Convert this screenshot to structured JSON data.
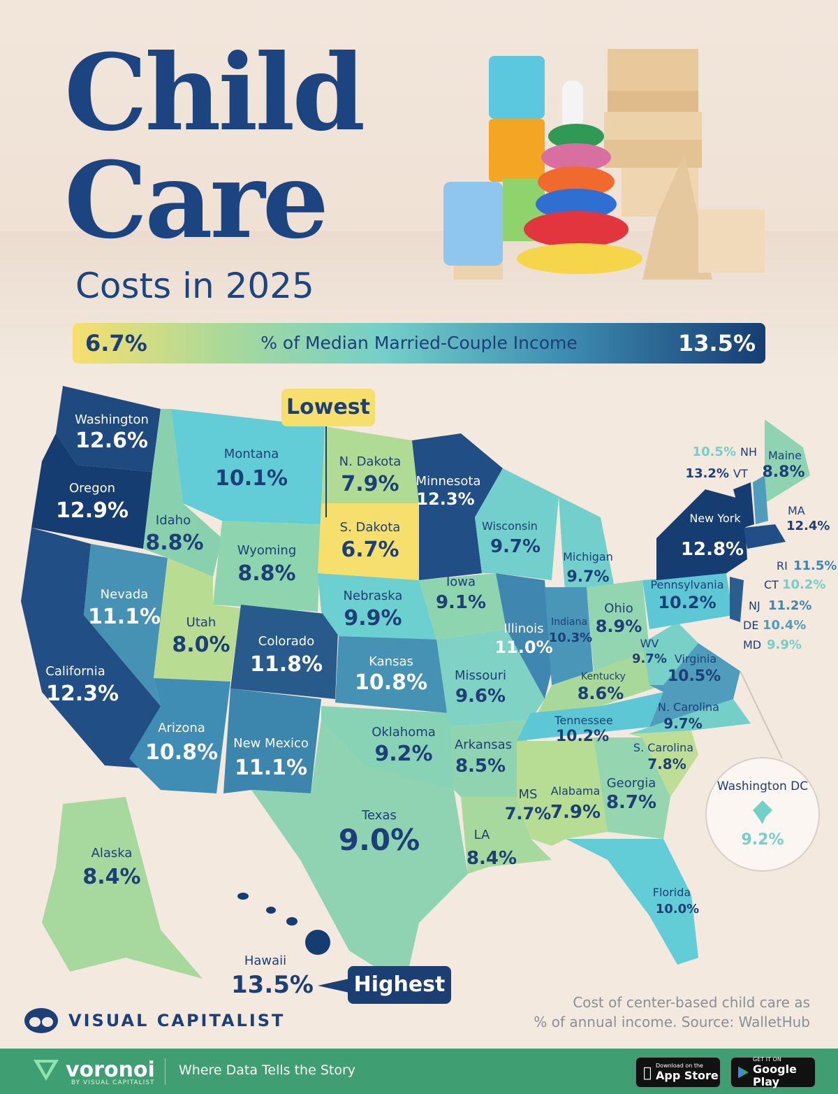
{
  "title": {
    "line1": "Child",
    "line2": "Care",
    "subtitle": "Costs in 2025"
  },
  "legend": {
    "min": "6.7%",
    "max": "13.5%",
    "title": "% of Median Married-Couple Income",
    "gradient_colors": [
      "#f7df6e",
      "#a9d99a",
      "#74cfc8",
      "#3f8fb3",
      "#163d72"
    ]
  },
  "callouts": {
    "lowest": "Lowest",
    "highest": "Highest"
  },
  "states": {
    "washington": {
      "name": "Washington",
      "value": "12.6%"
    },
    "oregon": {
      "name": "Oregon",
      "value": "12.9%"
    },
    "california": {
      "name": "California",
      "value": "12.3%"
    },
    "nevada": {
      "name": "Nevada",
      "value": "11.1%"
    },
    "idaho": {
      "name": "Idaho",
      "value": "8.8%"
    },
    "montana": {
      "name": "Montana",
      "value": "10.1%"
    },
    "wyoming": {
      "name": "Wyoming",
      "value": "8.8%"
    },
    "utah": {
      "name": "Utah",
      "value": "8.0%"
    },
    "arizona": {
      "name": "Arizona",
      "value": "10.8%"
    },
    "colorado": {
      "name": "Colorado",
      "value": "11.8%"
    },
    "new_mexico": {
      "name": "New Mexico",
      "value": "11.1%"
    },
    "north_dakota": {
      "name": "N. Dakota",
      "value": "7.9%"
    },
    "south_dakota": {
      "name": "S. Dakota",
      "value": "6.7%"
    },
    "nebraska": {
      "name": "Nebraska",
      "value": "9.9%"
    },
    "kansas": {
      "name": "Kansas",
      "value": "10.8%"
    },
    "oklahoma": {
      "name": "Oklahoma",
      "value": "9.2%"
    },
    "texas": {
      "name": "Texas",
      "value": "9.0%"
    },
    "minnesota": {
      "name": "Minnesota",
      "value": "12.3%"
    },
    "iowa": {
      "name": "Iowa",
      "value": "9.1%"
    },
    "missouri": {
      "name": "Missouri",
      "value": "9.6%"
    },
    "arkansas": {
      "name": "Arkansas",
      "value": "8.5%"
    },
    "louisiana": {
      "name": "LA",
      "value": "8.4%"
    },
    "wisconsin": {
      "name": "Wisconsin",
      "value": "9.7%"
    },
    "illinois": {
      "name": "Illinois",
      "value": "11.0%"
    },
    "michigan": {
      "name": "Michigan",
      "value": "9.7%"
    },
    "indiana": {
      "name": "Indiana",
      "value": "10.3%"
    },
    "ohio": {
      "name": "Ohio",
      "value": "8.9%"
    },
    "kentucky": {
      "name": "Kentucky",
      "value": "8.6%"
    },
    "tennessee": {
      "name": "Tennessee",
      "value": "10.2%"
    },
    "mississippi": {
      "name": "MS",
      "value": "7.7%"
    },
    "alabama": {
      "name": "Alabama",
      "value": "7.9%"
    },
    "georgia": {
      "name": "Georgia",
      "value": "8.7%"
    },
    "florida": {
      "name": "Florida",
      "value": "10.0%"
    },
    "south_carolina": {
      "name": "S. Carolina",
      "value": "7.8%"
    },
    "north_carolina": {
      "name": "N. Carolina",
      "value": "9.7%"
    },
    "virginia": {
      "name": "Virginia",
      "value": "10.5%"
    },
    "west_virginia": {
      "name": "WV",
      "value": "9.7%"
    },
    "pennsylvania": {
      "name": "Pennsylvania",
      "value": "10.2%"
    },
    "new_york": {
      "name": "New York",
      "value": "12.8%"
    },
    "maine": {
      "name": "Maine",
      "value": "8.8%"
    },
    "new_hampshire": {
      "name": "NH",
      "value": "10.5%"
    },
    "vermont": {
      "name": "VT",
      "value": "13.2%"
    },
    "massachusetts": {
      "name": "MA",
      "value": "12.4%"
    },
    "rhode_island": {
      "name": "RI",
      "value": "11.5%"
    },
    "connecticut": {
      "name": "CT",
      "value": "10.2%"
    },
    "new_jersey": {
      "name": "NJ",
      "value": "11.2%"
    },
    "delaware": {
      "name": "DE",
      "value": "10.4%"
    },
    "maryland": {
      "name": "MD",
      "value": "9.9%"
    },
    "alaska": {
      "name": "Alaska",
      "value": "8.4%"
    },
    "hawaii": {
      "name": "Hawaii",
      "value": "13.5%"
    },
    "washington_dc": {
      "name": "Washington DC",
      "value": "9.2%"
    }
  },
  "source": {
    "line1": "Cost of center-based child care as",
    "line2": "% of annual income. Source: WalletHub"
  },
  "branding": {
    "vc": "VISUAL CAPITALIST",
    "voronoi": "voronoi",
    "voronoi_by": "BY VISUAL CAPITALIST",
    "tagline": "Where Data Tells the Story",
    "apple_small": "Download on the",
    "apple_big": "App Store",
    "google_small": "GET IT ON",
    "google_big": "Google Play"
  }
}
